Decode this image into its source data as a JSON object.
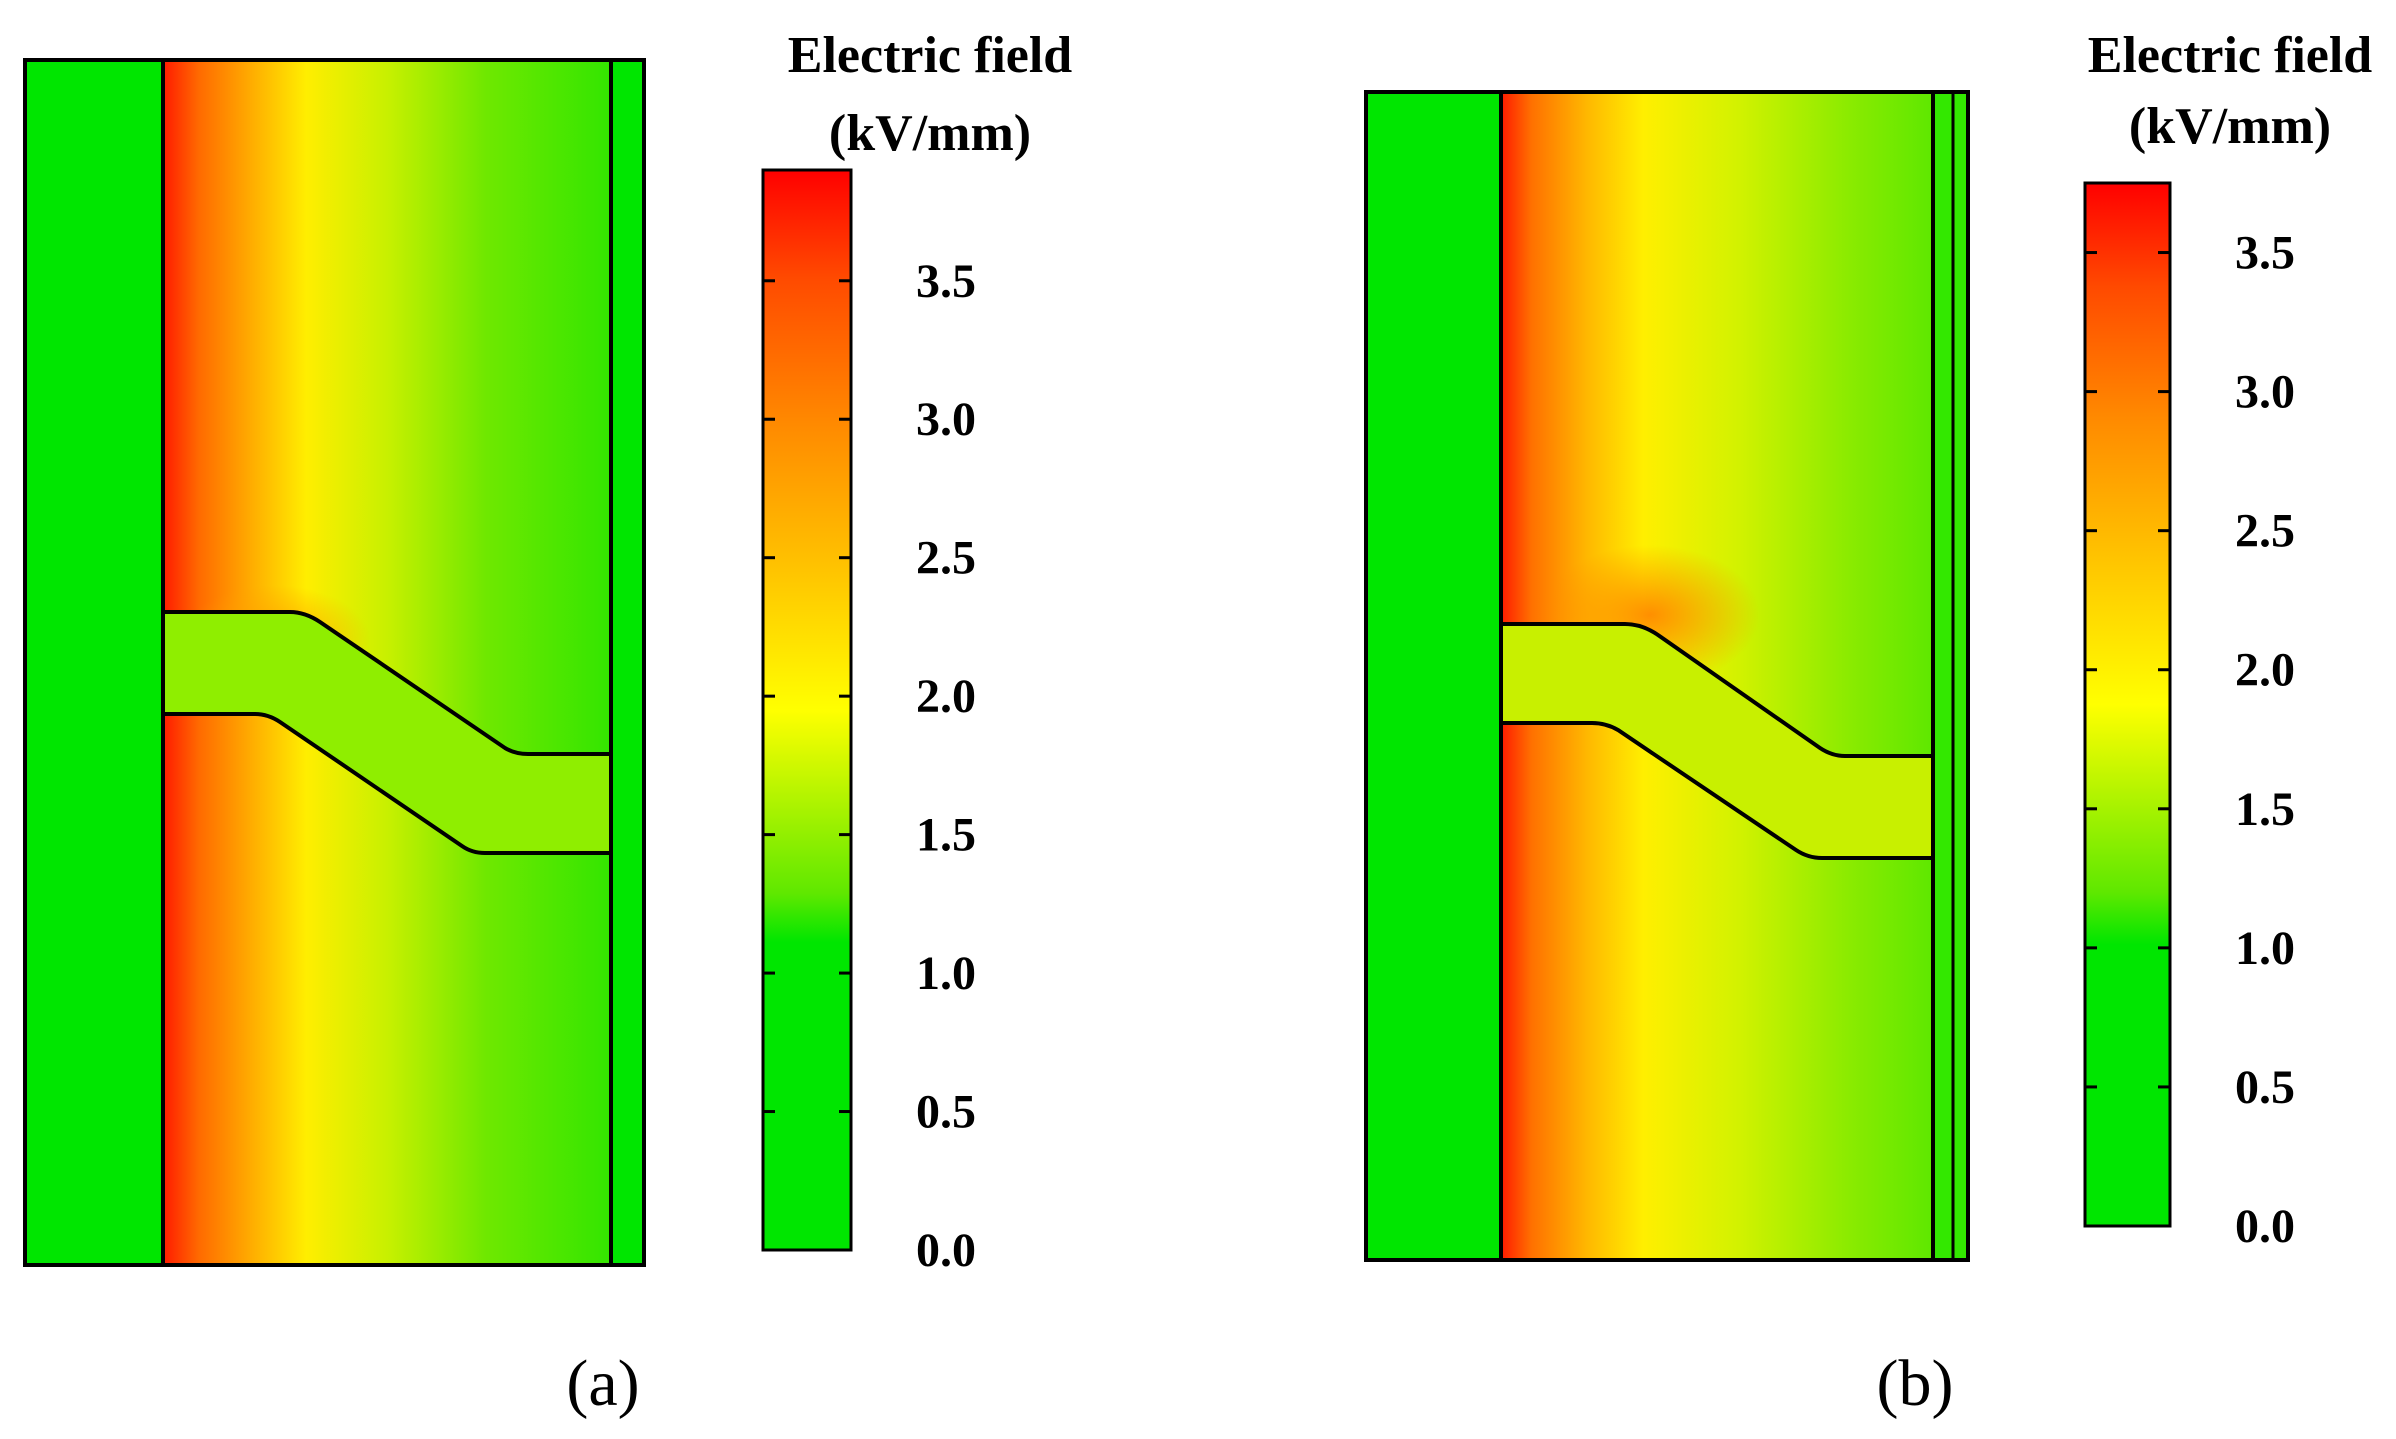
{
  "figure": {
    "panels": [
      {
        "label": "(a)",
        "colorbar": {
          "title_line1": "Electric field",
          "title_line2": "(kV/mm)",
          "ticks": [
            "0.0",
            "0.5",
            "1.0",
            "1.5",
            "2.0",
            "2.5",
            "3.0",
            "3.5"
          ],
          "min": 0.0,
          "max": 3.9
        }
      },
      {
        "label": "(b)",
        "colorbar": {
          "title_line1": "Electric field",
          "title_line2": "(kV/mm)",
          "ticks": [
            "0.0",
            "0.5",
            "1.0",
            "1.5",
            "2.0",
            "2.5",
            "3.0",
            "3.5"
          ],
          "min": 0.0,
          "max": 3.75
        }
      }
    ],
    "colors": {
      "green": "#00e600",
      "yellow": "#ffff00",
      "orange": "#ff8c00",
      "red": "#ff0000",
      "outline": "#000000"
    }
  }
}
